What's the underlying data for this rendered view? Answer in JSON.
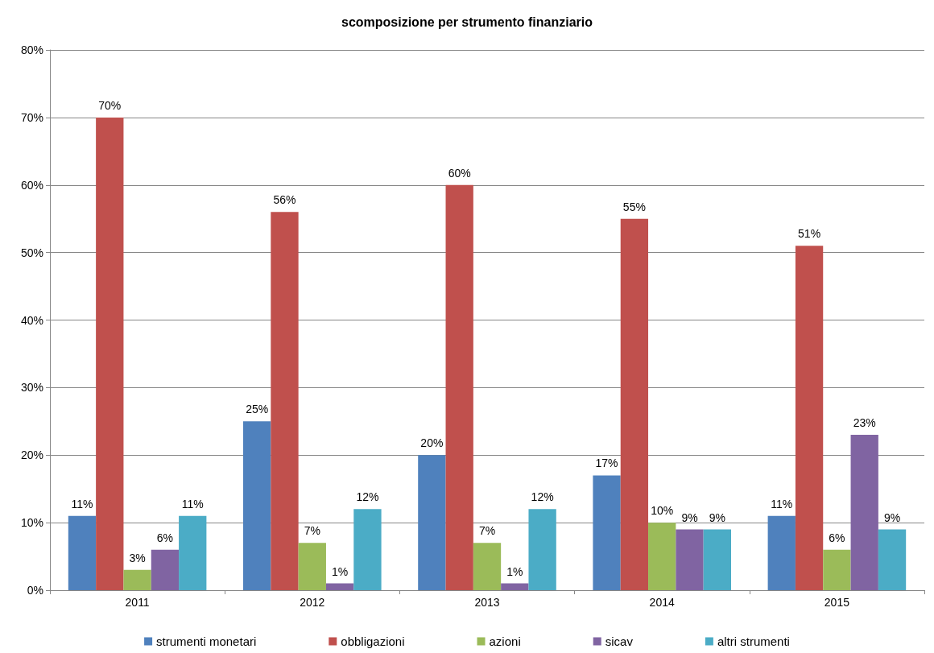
{
  "chart_data": {
    "type": "bar",
    "title": "scomposizione per strumento finanziario",
    "categories": [
      "2011",
      "2012",
      "2013",
      "2014",
      "2015"
    ],
    "series": [
      {
        "name": "strumenti monetari",
        "color": "#4f81bd",
        "values": [
          11,
          25,
          20,
          17,
          11
        ],
        "value_labels": [
          "11%",
          "25%",
          "20%",
          "17%",
          "11%"
        ]
      },
      {
        "name": "obbligazioni",
        "color": "#c0504d",
        "values": [
          70,
          56,
          60,
          55,
          51
        ],
        "value_labels": [
          "70%",
          "56%",
          "60%",
          "55%",
          "51%"
        ]
      },
      {
        "name": "azioni",
        "color": "#9bbb59",
        "values": [
          3,
          7,
          7,
          10,
          6
        ],
        "value_labels": [
          "3%",
          "7%",
          "7%",
          "10%",
          "6%"
        ]
      },
      {
        "name": "sicav",
        "color": "#8064a2",
        "values": [
          6,
          1,
          1,
          9,
          23
        ],
        "value_labels": [
          "6%",
          "1%",
          "1%",
          "9%",
          "23%"
        ]
      },
      {
        "name": "altri strumenti",
        "color": "#4bacc6",
        "values": [
          11,
          12,
          12,
          9,
          9
        ],
        "value_labels": [
          "11%",
          "12%",
          "12%",
          "9%",
          "9%"
        ]
      }
    ],
    "ylim": [
      0,
      80
    ],
    "yticks": [
      {
        "value": 0,
        "label": "0%"
      },
      {
        "value": 10,
        "label": "10%"
      },
      {
        "value": 20,
        "label": "20%"
      },
      {
        "value": 30,
        "label": "30%"
      },
      {
        "value": 40,
        "label": "40%"
      },
      {
        "value": 50,
        "label": "50%"
      },
      {
        "value": 60,
        "label": "60%"
      },
      {
        "value": 70,
        "label": "70%"
      },
      {
        "value": 80,
        "label": "80%"
      }
    ],
    "grid": "y",
    "legend": "bottom"
  }
}
